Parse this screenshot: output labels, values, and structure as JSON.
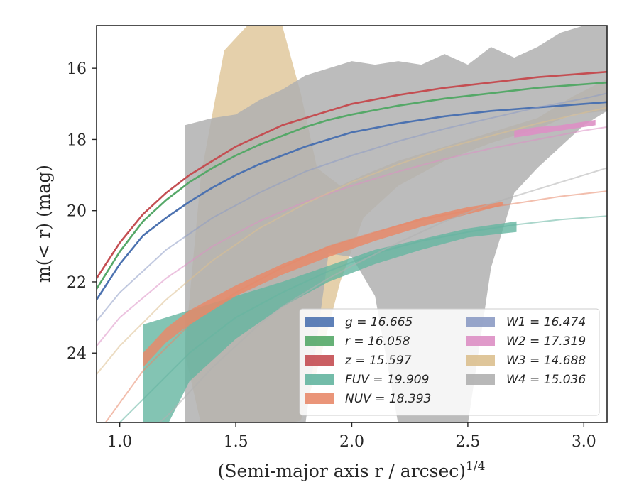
{
  "chart_data": {
    "type": "line",
    "xlabel": "(Semi-major axis r / arcsec)",
    "xlabel_superscript": "1/4",
    "ylabel": "m(< r) (mag)",
    "xlim": [
      0.9,
      3.1
    ],
    "ylim": [
      25.95,
      14.8
    ],
    "y_inverted": true,
    "x_ticks": [
      1.0,
      1.5,
      2.0,
      2.5,
      3.0
    ],
    "x_tick_labels": [
      "1.0",
      "1.5",
      "2.0",
      "2.5",
      "3.0"
    ],
    "y_ticks": [
      16,
      18,
      20,
      22,
      24
    ],
    "y_tick_labels": [
      "16",
      "18",
      "20",
      "22",
      "24"
    ],
    "grid": false,
    "legend_placement": "lower-right",
    "legend_columns": 2,
    "series": [
      {
        "key": "g",
        "legend": "g = 16.665",
        "color": "#4c72b0",
        "model": {
          "x": [
            0.9,
            1.0,
            1.1,
            1.2,
            1.3,
            1.4,
            1.5,
            1.6,
            1.7,
            1.8,
            1.9,
            2.0,
            2.2,
            2.4,
            2.6,
            2.8,
            3.0,
            3.1
          ],
          "y": [
            22.5,
            21.5,
            20.7,
            20.2,
            19.75,
            19.35,
            19.0,
            18.7,
            18.45,
            18.2,
            18.0,
            17.8,
            17.55,
            17.35,
            17.2,
            17.1,
            17.0,
            16.95
          ]
        },
        "band_upper": [],
        "band_lower": [],
        "band_x": []
      },
      {
        "key": "r",
        "legend": "r = 16.058",
        "color": "#55a868",
        "model": {
          "x": [
            0.9,
            1.0,
            1.1,
            1.2,
            1.3,
            1.4,
            1.5,
            1.6,
            1.7,
            1.8,
            1.9,
            2.0,
            2.2,
            2.4,
            2.6,
            2.8,
            3.0,
            3.1
          ],
          "y": [
            22.2,
            21.15,
            20.3,
            19.7,
            19.2,
            18.8,
            18.45,
            18.15,
            17.9,
            17.65,
            17.45,
            17.3,
            17.05,
            16.85,
            16.7,
            16.55,
            16.45,
            16.4
          ]
        },
        "band_upper": [],
        "band_lower": [],
        "band_x": []
      },
      {
        "key": "z",
        "legend": "z = 15.597",
        "color": "#c44e52",
        "model": {
          "x": [
            0.9,
            1.0,
            1.1,
            1.2,
            1.3,
            1.4,
            1.5,
            1.6,
            1.7,
            1.8,
            1.9,
            2.0,
            2.2,
            2.4,
            2.6,
            2.8,
            3.0,
            3.1
          ],
          "y": [
            21.9,
            20.9,
            20.1,
            19.5,
            19.0,
            18.6,
            18.2,
            17.9,
            17.6,
            17.4,
            17.2,
            17.0,
            16.75,
            16.55,
            16.4,
            16.25,
            16.15,
            16.1
          ]
        },
        "band_upper": [],
        "band_lower": [],
        "band_x": []
      },
      {
        "key": "FUV",
        "legend": "FUV = 19.909",
        "color": "#64b5a0",
        "model": {
          "x": [
            0.9,
            1.1,
            1.3,
            1.5,
            1.7,
            1.9,
            2.1,
            2.3,
            2.5,
            2.7,
            2.9,
            3.1
          ],
          "y": [
            26.6,
            25.3,
            24.0,
            23.0,
            22.3,
            21.7,
            21.2,
            20.85,
            20.6,
            20.4,
            20.25,
            20.15
          ]
        },
        "band_x": [
          1.1,
          1.2,
          1.3,
          1.5,
          1.7,
          1.9,
          2.1,
          2.3,
          2.5,
          2.71
        ],
        "band_upper": [
          23.2,
          23.0,
          22.8,
          22.4,
          22.0,
          21.55,
          21.1,
          20.8,
          20.5,
          20.3
        ],
        "band_lower": [
          26.2,
          26.1,
          24.8,
          23.6,
          22.7,
          22.0,
          21.5,
          21.1,
          20.75,
          20.6
        ]
      },
      {
        "key": "NUV",
        "legend": "NUV = 18.393",
        "color": "#e8896a",
        "model": {
          "x": [
            0.9,
            1.1,
            1.3,
            1.5,
            1.7,
            1.9,
            2.1,
            2.3,
            2.5,
            2.7,
            2.9,
            3.1
          ],
          "y": [
            26.3,
            24.5,
            23.2,
            22.3,
            21.6,
            21.0,
            20.6,
            20.25,
            20.0,
            19.8,
            19.6,
            19.45
          ]
        },
        "band_x": [
          1.1,
          1.2,
          1.3,
          1.5,
          1.7,
          1.9,
          2.1,
          2.3,
          2.5,
          2.65
        ],
        "band_upper": [
          24.0,
          23.3,
          22.8,
          22.1,
          21.5,
          21.0,
          20.6,
          20.2,
          19.9,
          19.75
        ],
        "band_lower": [
          24.4,
          23.7,
          23.2,
          22.4,
          21.8,
          21.3,
          20.85,
          20.45,
          20.1,
          19.85
        ]
      },
      {
        "key": "W1",
        "legend": "W1 = 16.474",
        "color": "#8c9bc4",
        "model": {
          "x": [
            0.9,
            1.0,
            1.2,
            1.4,
            1.6,
            1.8,
            2.0,
            2.2,
            2.4,
            2.6,
            2.8,
            3.0,
            3.1
          ],
          "y": [
            23.1,
            22.3,
            21.1,
            20.2,
            19.5,
            18.9,
            18.45,
            18.05,
            17.7,
            17.4,
            17.1,
            16.85,
            16.7
          ]
        },
        "band_upper": [],
        "band_lower": [],
        "band_x": []
      },
      {
        "key": "W2",
        "legend": "W2 = 17.319",
        "color": "#dd8fc4",
        "model": {
          "x": [
            0.9,
            1.0,
            1.2,
            1.4,
            1.6,
            1.8,
            2.0,
            2.2,
            2.4,
            2.6,
            2.8,
            3.0,
            3.1
          ],
          "y": [
            23.8,
            23.0,
            21.9,
            21.0,
            20.3,
            19.75,
            19.3,
            18.9,
            18.55,
            18.25,
            18.0,
            17.75,
            17.65
          ]
        },
        "band_x": [
          2.7,
          2.8,
          2.9,
          3.0,
          3.05
        ],
        "band_upper": [
          17.75,
          17.65,
          17.6,
          17.5,
          17.45
        ],
        "band_lower": [
          17.95,
          17.85,
          17.75,
          17.65,
          17.6
        ]
      },
      {
        "key": "W3",
        "legend": "W3 = 14.688",
        "color": "#dcc08f",
        "model": {
          "x": [
            0.9,
            1.0,
            1.2,
            1.4,
            1.6,
            1.8,
            2.0,
            2.2,
            2.4,
            2.6,
            2.8,
            3.0,
            3.1
          ],
          "y": [
            24.6,
            23.8,
            22.5,
            21.4,
            20.5,
            19.8,
            19.2,
            18.7,
            18.25,
            17.9,
            17.55,
            17.25,
            17.1
          ]
        },
        "band_x": [
          1.28,
          1.35,
          1.45,
          1.55,
          1.6,
          1.7,
          1.78,
          1.85,
          1.95,
          2.05,
          2.2,
          2.4,
          2.6,
          2.8,
          2.95,
          3.1
        ],
        "band_upper": [
          23.9,
          19.0,
          15.5,
          14.8,
          14.8,
          14.8,
          16.7,
          18.8,
          19.3,
          19.0,
          18.6,
          18.2,
          17.8,
          17.4,
          16.8,
          16.3
        ],
        "band_lower": [
          24.0,
          26.0,
          26.0,
          26.0,
          26.0,
          26.0,
          25.9,
          24.5,
          22.0,
          20.2,
          19.3,
          18.6,
          18.1,
          17.7,
          17.3,
          17.2
        ]
      },
      {
        "key": "W4",
        "legend": "W4 = 15.036",
        "color": "#b0b0b0",
        "model": {
          "x": [
            1.1,
            1.2,
            1.3,
            1.4,
            1.5,
            1.6,
            1.7,
            1.8,
            1.9,
            2.0,
            2.2,
            2.4,
            2.6,
            2.8,
            3.0,
            3.1
          ],
          "y": [
            26.3,
            25.8,
            25.1,
            24.4,
            23.8,
            23.2,
            22.7,
            22.3,
            21.9,
            21.55,
            20.9,
            20.3,
            19.8,
            19.4,
            19.0,
            18.8
          ]
        },
        "band_x": [
          1.28,
          1.4,
          1.5,
          1.6,
          1.7,
          1.8,
          1.9,
          2.0,
          2.1,
          2.2,
          2.3,
          2.4,
          2.5,
          2.6,
          2.7,
          2.8,
          2.9,
          3.0,
          3.1
        ],
        "band_upper": [
          17.6,
          17.4,
          17.3,
          16.9,
          16.6,
          16.2,
          16.0,
          15.8,
          15.9,
          15.8,
          15.9,
          15.6,
          15.9,
          15.4,
          15.7,
          15.4,
          15.0,
          14.8,
          14.8
        ],
        "band_lower": [
          26.0,
          26.0,
          26.0,
          26.0,
          26.0,
          26.0,
          21.2,
          21.3,
          22.4,
          26.0,
          26.0,
          26.0,
          26.0,
          21.6,
          19.5,
          18.8,
          18.2,
          17.6,
          17.2
        ]
      }
    ]
  }
}
